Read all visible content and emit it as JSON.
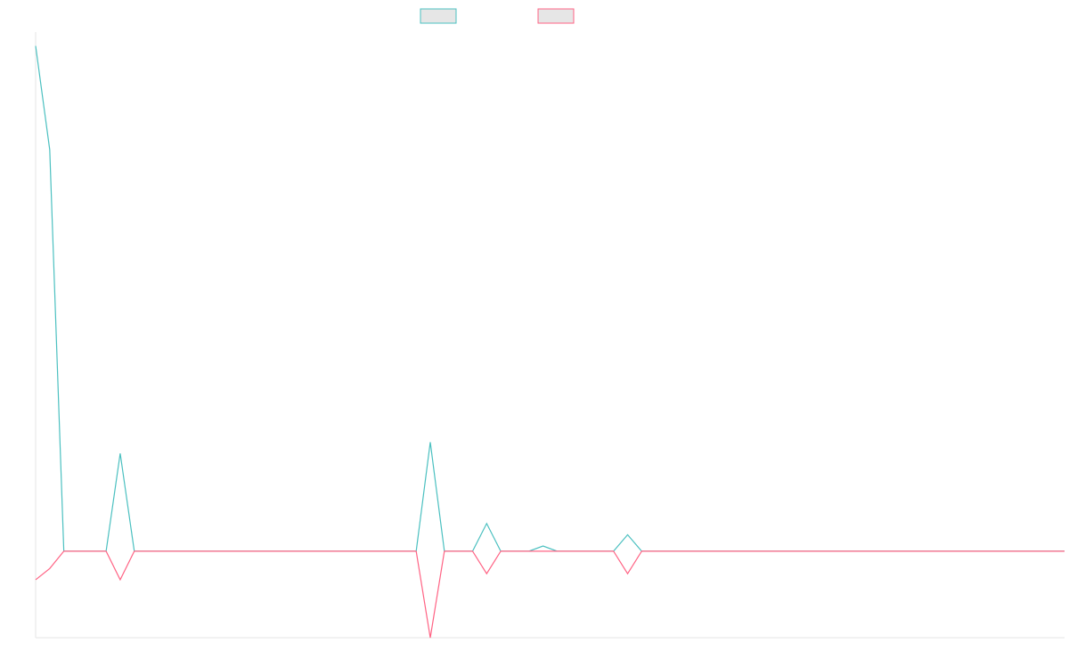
{
  "chart_data": {
    "type": "line",
    "title": "",
    "xlabel": "",
    "ylabel": "",
    "grid": false,
    "legend_position": "top-center",
    "x_count": 74,
    "ylim": [
      -1,
      6
    ],
    "series": [
      {
        "color": "#4bc0c0",
        "fill": "#e6e6e6",
        "points": [
          [
            0,
            5.84
          ],
          [
            1,
            4.64
          ],
          [
            6,
            1.13
          ],
          [
            28,
            1.26
          ],
          [
            32,
            0.32
          ],
          [
            36,
            0.06
          ],
          [
            42,
            0.19
          ]
        ]
      },
      {
        "color": "#ff6384",
        "fill": "#e6e6e6",
        "points": [
          [
            0,
            -0.33
          ],
          [
            1,
            -0.2
          ],
          [
            6,
            -0.33
          ],
          [
            28,
            -1.0
          ],
          [
            32,
            -0.26
          ],
          [
            42,
            -0.26
          ]
        ]
      }
    ]
  }
}
